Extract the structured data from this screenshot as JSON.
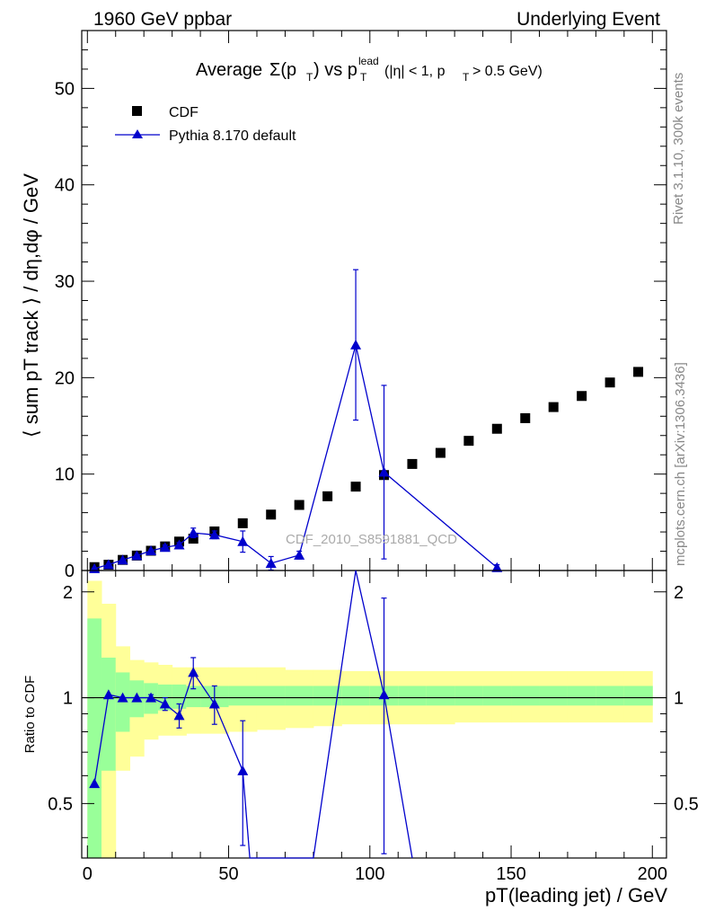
{
  "header": {
    "left": "1960 GeV ppbar",
    "right": "Underlying Event"
  },
  "side_labels": {
    "rivet": "Rivet 3.1.10,  300k events",
    "mcplots": "mcplots.cern.ch [arXiv:1306.3436]"
  },
  "colors": {
    "mc": "#0000cc",
    "data": "#000000",
    "band_inner": "#99ff99",
    "band_outer": "#ffff99"
  },
  "chart_data": [
    {
      "type": "scatter",
      "title": "Average Σ(pT) vs pT lead (|η| < 1, pT > 0.5 GeV)",
      "watermark": "CDF_2010_S8591881_QCD",
      "ylabel": "⟨ sum pT track ⟩ / dη,dφ / GeV",
      "xlim": [
        -2,
        205
      ],
      "ylim": [
        0,
        56
      ],
      "x_ticks": [
        0,
        50,
        100,
        150,
        200
      ],
      "y_ticks": [
        0,
        10,
        20,
        30,
        40,
        50
      ],
      "legend_position": "top-left",
      "legend": [
        "CDF",
        "Pythia 8.170 default"
      ],
      "series": [
        {
          "name": "CDF",
          "marker": "square",
          "x": [
            2.5,
            7.5,
            12.5,
            17.5,
            22.5,
            27.5,
            32.5,
            37.5,
            45,
            55,
            65,
            75,
            85,
            95,
            105,
            115,
            125,
            135,
            145,
            155,
            165,
            175,
            185,
            195
          ],
          "y": [
            0.35,
            0.6,
            1.1,
            1.55,
            2.05,
            2.5,
            3.0,
            3.3,
            4.05,
            4.9,
            5.8,
            6.8,
            7.7,
            8.7,
            9.9,
            11.05,
            12.2,
            13.45,
            14.7,
            15.8,
            16.95,
            18.1,
            19.5,
            20.6
          ]
        },
        {
          "name": "Pythia 8.170 default",
          "marker": "triangle",
          "x": [
            2.5,
            7.5,
            12.5,
            17.5,
            22.5,
            27.5,
            32.5,
            37.5,
            45,
            55,
            65,
            75,
            95,
            105,
            145
          ],
          "y": [
            0.2,
            0.62,
            1.1,
            1.55,
            2.05,
            2.4,
            2.65,
            3.9,
            3.7,
            3.0,
            0.75,
            1.6,
            23.4,
            10.2,
            0.3
          ],
          "yerr": [
            0.05,
            0.08,
            0.1,
            0.12,
            0.15,
            0.25,
            0.25,
            0.5,
            0.4,
            1.1,
            0.7,
            0.4,
            7.8,
            9.0,
            0.3
          ]
        }
      ]
    },
    {
      "type": "line",
      "ylabel": "Ratio to CDF",
      "ylim": [
        0.35,
        2.3
      ],
      "y_scale": "log",
      "y_ticks": [
        0.5,
        1,
        2
      ],
      "xlabel": "pT(leading jet) / GeV",
      "x_ticks": [
        0,
        50,
        100,
        150,
        200
      ],
      "bands": {
        "edges": [
          0,
          5,
          10,
          15,
          20,
          25,
          30,
          35,
          40,
          50,
          60,
          70,
          80,
          90,
          100,
          110,
          120,
          130,
          140,
          150,
          160,
          170,
          180,
          190,
          200
        ],
        "inner_lo": [
          0.2,
          0.62,
          0.8,
          0.88,
          0.9,
          0.92,
          0.93,
          0.94,
          0.94,
          0.95,
          0.95,
          0.95,
          0.95,
          0.95,
          0.95,
          0.95,
          0.95,
          0.95,
          0.95,
          0.95,
          0.95,
          0.95,
          0.95,
          0.95
        ],
        "inner_hi": [
          1.68,
          1.3,
          1.18,
          1.12,
          1.1,
          1.09,
          1.09,
          1.08,
          1.08,
          1.08,
          1.08,
          1.08,
          1.08,
          1.08,
          1.08,
          1.08,
          1.08,
          1.08,
          1.08,
          1.08,
          1.08,
          1.08,
          1.08,
          1.08
        ],
        "outer_lo": [
          0.2,
          0.32,
          0.62,
          0.68,
          0.76,
          0.78,
          0.78,
          0.79,
          0.79,
          0.8,
          0.81,
          0.82,
          0.83,
          0.84,
          0.84,
          0.84,
          0.84,
          0.85,
          0.85,
          0.85,
          0.85,
          0.85,
          0.85,
          0.85
        ],
        "outer_hi": [
          2.15,
          1.85,
          1.4,
          1.28,
          1.26,
          1.24,
          1.22,
          1.22,
          1.22,
          1.22,
          1.22,
          1.2,
          1.2,
          1.19,
          1.19,
          1.19,
          1.19,
          1.19,
          1.19,
          1.19,
          1.19,
          1.19,
          1.19,
          1.19
        ]
      },
      "series": [
        {
          "name": "Pythia 8.170 default",
          "x": [
            2.5,
            7.5,
            12.5,
            17.5,
            22.5,
            27.5,
            32.5,
            37.5,
            45,
            55,
            57.5,
            80,
            95,
            105,
            115
          ],
          "y": [
            0.57,
            1.02,
            1.0,
            1.0,
            1.0,
            0.96,
            0.89,
            1.18,
            0.96,
            0.62,
            0.35,
            0.35,
            2.3,
            1.02,
            0.35
          ],
          "yerr": [
            0.0,
            0.0,
            0.0,
            0.0,
            0.02,
            0.04,
            0.07,
            0.12,
            0.12,
            0.24,
            0.0,
            0.0,
            0.0,
            0.9,
            0.0
          ]
        }
      ]
    }
  ]
}
